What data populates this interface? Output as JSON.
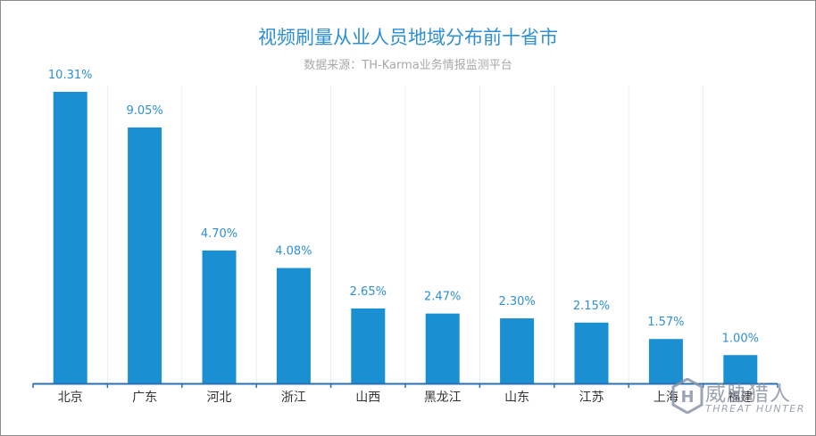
{
  "chart_data": {
    "type": "bar",
    "title": "视频刷量从业人员地域分布前十省市",
    "subtitle": "数据来源：TH-Karma业务情报监测平台",
    "categories": [
      "北京",
      "广东",
      "河北",
      "浙江",
      "山西",
      "黑龙江",
      "山东",
      "江苏",
      "上海",
      "福建"
    ],
    "values": [
      10.31,
      9.05,
      4.7,
      4.08,
      2.65,
      2.47,
      2.3,
      2.15,
      1.57,
      1.0
    ],
    "value_labels": [
      "10.31%",
      "9.05%",
      "4.70%",
      "4.08%",
      "2.65%",
      "2.47%",
      "2.30%",
      "2.15%",
      "1.57%",
      "1.00%"
    ],
    "xlabel": "",
    "ylabel": "",
    "ylim": [
      0,
      11
    ],
    "bar_color": "#1a8fd1",
    "label_color": "#2f8fd0",
    "grid": "vertical"
  },
  "watermark": {
    "text_cn": "威胁猎人",
    "text_en": "THREAT HUNTER",
    "logo_letter": "H"
  }
}
